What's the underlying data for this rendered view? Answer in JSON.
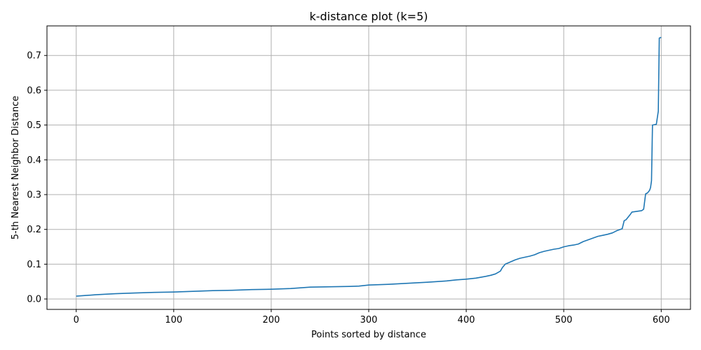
{
  "chart_data": {
    "type": "line",
    "title": "k-distance plot (k=5)",
    "xlabel": "Points sorted by distance",
    "ylabel": "5-th Nearest Neighbor Distance",
    "xlim": [
      -30,
      630
    ],
    "ylim": [
      -0.03,
      0.785
    ],
    "xticks": [
      0,
      100,
      200,
      300,
      400,
      500,
      600
    ],
    "xtick_labels": [
      "0",
      "100",
      "200",
      "300",
      "400",
      "500",
      "600"
    ],
    "yticks": [
      0.0,
      0.1,
      0.2,
      0.3,
      0.4,
      0.5,
      0.6,
      0.7
    ],
    "ytick_labels": [
      "0.0",
      "0.1",
      "0.2",
      "0.3",
      "0.4",
      "0.5",
      "0.6",
      "0.7"
    ],
    "grid": true,
    "series": [
      {
        "color": "#1f77b4",
        "x": [
          0,
          10,
          20,
          40,
          60,
          80,
          100,
          120,
          140,
          160,
          180,
          200,
          220,
          240,
          260,
          280,
          290,
          300,
          320,
          340,
          360,
          380,
          390,
          400,
          410,
          420,
          425,
          430,
          435,
          437,
          440,
          445,
          450,
          455,
          460,
          465,
          470,
          475,
          480,
          485,
          490,
          495,
          500,
          505,
          510,
          515,
          520,
          525,
          530,
          535,
          540,
          545,
          550,
          555,
          560,
          562,
          564,
          566,
          568,
          570,
          575,
          580,
          582,
          584,
          586,
          588,
          589,
          590,
          591,
          593,
          595,
          597,
          598,
          600
        ],
        "y": [
          0.008,
          0.01,
          0.012,
          0.015,
          0.017,
          0.019,
          0.02,
          0.022,
          0.024,
          0.025,
          0.027,
          0.028,
          0.03,
          0.034,
          0.035,
          0.036,
          0.037,
          0.04,
          0.042,
          0.045,
          0.048,
          0.052,
          0.055,
          0.057,
          0.06,
          0.065,
          0.068,
          0.072,
          0.08,
          0.09,
          0.1,
          0.106,
          0.112,
          0.117,
          0.12,
          0.123,
          0.127,
          0.133,
          0.137,
          0.14,
          0.143,
          0.145,
          0.15,
          0.153,
          0.155,
          0.158,
          0.165,
          0.17,
          0.175,
          0.18,
          0.183,
          0.186,
          0.19,
          0.197,
          0.202,
          0.225,
          0.228,
          0.235,
          0.242,
          0.25,
          0.252,
          0.254,
          0.258,
          0.302,
          0.305,
          0.312,
          0.32,
          0.34,
          0.5,
          0.501,
          0.502,
          0.54,
          0.75,
          0.752
        ]
      }
    ]
  }
}
